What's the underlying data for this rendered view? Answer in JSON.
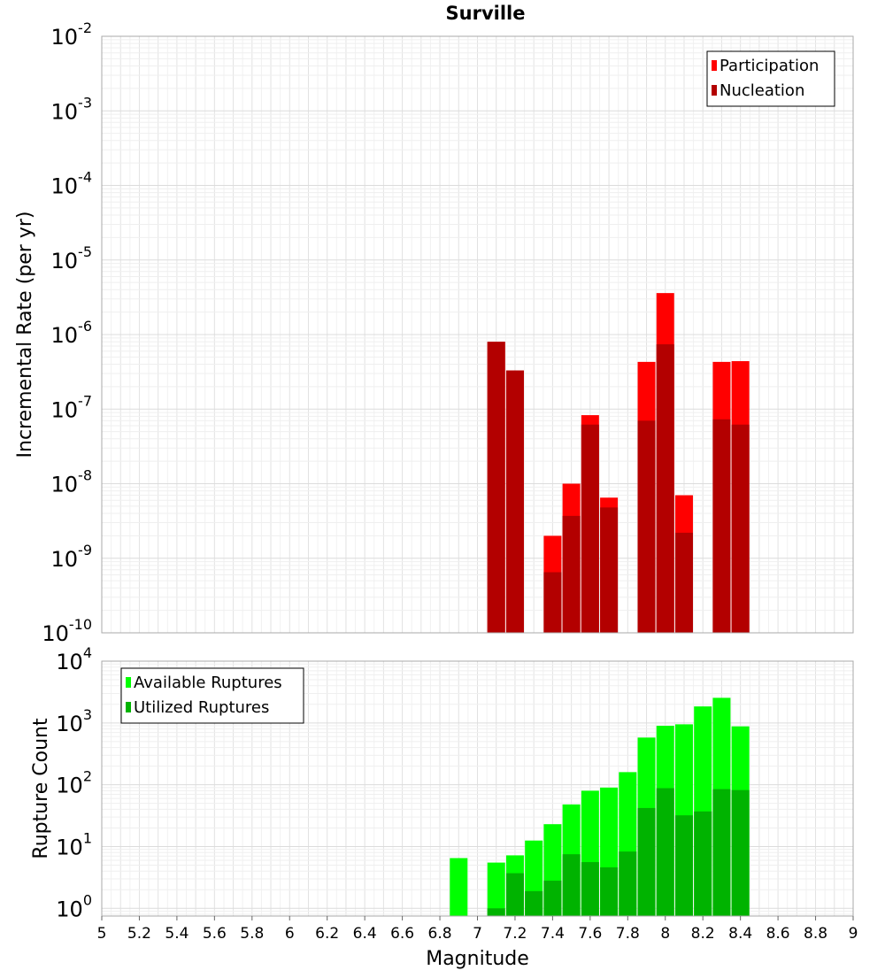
{
  "chart_data": [
    {
      "type": "bar",
      "title": "Surville",
      "xlabel": "",
      "ylabel": "Incremental Rate (per yr)",
      "yscale": "log",
      "ylim": [
        1e-10,
        0.01
      ],
      "xlim": [
        5,
        9
      ],
      "ytick_labels": [
        {
          "base": "10",
          "exp": "-2"
        },
        {
          "base": "10",
          "exp": "-3"
        },
        {
          "base": "10",
          "exp": "-4"
        },
        {
          "base": "10",
          "exp": "-5"
        },
        {
          "base": "10",
          "exp": "-6"
        },
        {
          "base": "10",
          "exp": "-7"
        },
        {
          "base": "10",
          "exp": "-8"
        },
        {
          "base": "10",
          "exp": "-9"
        },
        {
          "base": "10",
          "exp": "-10"
        }
      ],
      "legend_position": "top-right",
      "x": [
        7.1,
        7.2,
        7.4,
        7.5,
        7.6,
        7.7,
        7.9,
        8.0,
        8.1,
        8.3,
        8.4
      ],
      "series": [
        {
          "name": "Participation",
          "color": "#ff0000",
          "values": [
            8e-07,
            3.3e-07,
            2e-09,
            1e-08,
            8.3e-08,
            6.5e-09,
            4.3e-07,
            3.6e-06,
            7e-09,
            4.3e-07,
            4.4e-07
          ]
        },
        {
          "name": "Nucleation",
          "color": "#b30000",
          "values": [
            8e-07,
            3.3e-07,
            6.5e-10,
            3.7e-09,
            6.2e-08,
            4.8e-09,
            7e-08,
            7.4e-07,
            2.2e-09,
            7.3e-08,
            6.2e-08
          ]
        }
      ]
    },
    {
      "type": "bar",
      "title": "",
      "xlabel": "Magnitude",
      "ylabel": "Rupture Count",
      "yscale": "log",
      "ylim": [
        0.75,
        10000
      ],
      "xlim": [
        5,
        9
      ],
      "xticks": [
        "5",
        "5.2",
        "5.4",
        "5.6",
        "5.8",
        "6",
        "6.2",
        "6.4",
        "6.6",
        "6.8",
        "7",
        "7.2",
        "7.4",
        "7.6",
        "7.8",
        "8",
        "8.2",
        "8.4",
        "8.6",
        "8.8",
        "9"
      ],
      "ytick_labels": [
        {
          "base": "10",
          "exp": "4"
        },
        {
          "base": "10",
          "exp": "3"
        },
        {
          "base": "10",
          "exp": "2"
        },
        {
          "base": "10",
          "exp": "1"
        },
        {
          "base": "10",
          "exp": "0"
        }
      ],
      "legend_position": "top-left",
      "x": [
        6.9,
        7.1,
        7.2,
        7.3,
        7.4,
        7.5,
        7.6,
        7.7,
        7.8,
        7.9,
        8.0,
        8.1,
        8.2,
        8.3,
        8.4
      ],
      "series": [
        {
          "name": "Available Ruptures",
          "color": "#00ff00",
          "values": [
            6.5,
            5.5,
            7.2,
            12.5,
            23,
            48,
            80,
            90,
            160,
            580,
            900,
            950,
            1850,
            2550,
            880
          ]
        },
        {
          "name": "Utilized Ruptures",
          "color": "#00b300",
          "values": [
            0,
            1.0,
            3.7,
            1.9,
            2.8,
            7.5,
            5.6,
            4.6,
            8.3,
            42,
            88,
            32,
            37,
            85,
            82
          ]
        }
      ]
    }
  ]
}
